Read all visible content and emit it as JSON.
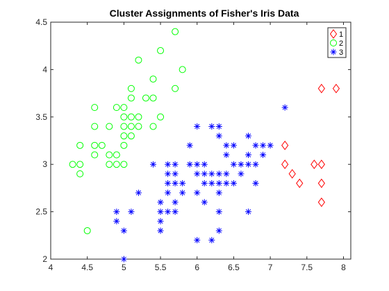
{
  "chart_data": {
    "type": "scatter",
    "title": "Cluster Assignments of Fisher's Iris Data",
    "xlabel": "",
    "ylabel": "",
    "xlim": [
      4,
      8.1
    ],
    "ylim": [
      2,
      4.5
    ],
    "xticks": [
      4,
      4.5,
      5,
      5.5,
      6,
      6.5,
      7,
      7.5,
      8
    ],
    "yticks": [
      2,
      2.5,
      3,
      3.5,
      4,
      4.5
    ],
    "xtick_labels": [
      "4",
      "4.5",
      "5",
      "5.5",
      "6",
      "6.5",
      "7",
      "7.5",
      "8"
    ],
    "ytick_labels": [
      "2",
      "2.5",
      "3",
      "3.5",
      "4",
      "4.5"
    ],
    "grid": false,
    "legend_position": "top-right",
    "series": [
      {
        "name": "1",
        "marker": "diamond",
        "color": "#ff0000",
        "points": [
          [
            7.7,
            3.8
          ],
          [
            7.9,
            3.8
          ],
          [
            7.2,
            3.2
          ],
          [
            7.2,
            3.0
          ],
          [
            7.3,
            2.9
          ],
          [
            7.4,
            2.8
          ],
          [
            7.6,
            3.0
          ],
          [
            7.7,
            3.0
          ],
          [
            7.7,
            2.8
          ],
          [
            7.7,
            2.6
          ]
        ]
      },
      {
        "name": "2",
        "marker": "circle",
        "color": "#00ff00",
        "points": [
          [
            5.7,
            4.4
          ],
          [
            5.5,
            4.2
          ],
          [
            5.2,
            4.1
          ],
          [
            5.8,
            4.0
          ],
          [
            5.4,
            3.9
          ],
          [
            5.1,
            3.8
          ],
          [
            5.7,
            3.8
          ],
          [
            5.1,
            3.7
          ],
          [
            5.3,
            3.7
          ],
          [
            5.4,
            3.7
          ],
          [
            4.6,
            3.6
          ],
          [
            4.9,
            3.6
          ],
          [
            5.0,
            3.6
          ],
          [
            5.0,
            3.5
          ],
          [
            5.1,
            3.5
          ],
          [
            5.2,
            3.5
          ],
          [
            5.5,
            3.5
          ],
          [
            4.6,
            3.4
          ],
          [
            4.8,
            3.4
          ],
          [
            5.0,
            3.4
          ],
          [
            5.1,
            3.4
          ],
          [
            5.2,
            3.4
          ],
          [
            5.4,
            3.4
          ],
          [
            5.0,
            3.3
          ],
          [
            4.4,
            3.2
          ],
          [
            4.6,
            3.2
          ],
          [
            4.7,
            3.2
          ],
          [
            5.0,
            3.2
          ],
          [
            4.6,
            3.1
          ],
          [
            4.8,
            3.1
          ],
          [
            4.9,
            3.1
          ],
          [
            5.1,
            3.3
          ],
          [
            4.3,
            3.0
          ],
          [
            4.4,
            3.0
          ],
          [
            4.8,
            3.0
          ],
          [
            4.9,
            3.0
          ],
          [
            5.0,
            3.0
          ],
          [
            4.4,
            2.9
          ],
          [
            4.5,
            2.3
          ]
        ]
      },
      {
        "name": "3",
        "marker": "asterisk",
        "color": "#0000ff",
        "points": [
          [
            7.2,
            3.6
          ],
          [
            6.0,
            3.4
          ],
          [
            6.2,
            3.4
          ],
          [
            6.3,
            3.4
          ],
          [
            6.3,
            3.3
          ],
          [
            6.7,
            3.3
          ],
          [
            5.9,
            3.2
          ],
          [
            6.4,
            3.2
          ],
          [
            6.5,
            3.2
          ],
          [
            6.8,
            3.2
          ],
          [
            6.9,
            3.2
          ],
          [
            7.0,
            3.2
          ],
          [
            6.7,
            3.1
          ],
          [
            6.9,
            3.1
          ],
          [
            6.4,
            3.1
          ],
          [
            5.4,
            3.0
          ],
          [
            5.6,
            3.0
          ],
          [
            5.7,
            3.0
          ],
          [
            5.9,
            3.0
          ],
          [
            6.0,
            3.0
          ],
          [
            6.1,
            3.0
          ],
          [
            6.5,
            3.0
          ],
          [
            6.6,
            3.0
          ],
          [
            6.7,
            3.0
          ],
          [
            6.8,
            3.0
          ],
          [
            5.6,
            2.9
          ],
          [
            5.7,
            2.9
          ],
          [
            6.0,
            2.9
          ],
          [
            6.1,
            2.9
          ],
          [
            6.2,
            2.9
          ],
          [
            6.3,
            2.9
          ],
          [
            6.4,
            2.9
          ],
          [
            6.6,
            2.9
          ],
          [
            5.6,
            2.8
          ],
          [
            5.7,
            2.8
          ],
          [
            5.8,
            2.8
          ],
          [
            6.1,
            2.8
          ],
          [
            6.2,
            2.8
          ],
          [
            6.3,
            2.8
          ],
          [
            6.4,
            2.8
          ],
          [
            6.5,
            2.8
          ],
          [
            6.8,
            2.8
          ],
          [
            5.2,
            2.7
          ],
          [
            5.6,
            2.7
          ],
          [
            5.8,
            2.7
          ],
          [
            6.0,
            2.7
          ],
          [
            6.3,
            2.7
          ],
          [
            5.5,
            2.6
          ],
          [
            5.7,
            2.6
          ],
          [
            6.1,
            2.6
          ],
          [
            4.9,
            2.5
          ],
          [
            5.1,
            2.5
          ],
          [
            5.5,
            2.5
          ],
          [
            5.6,
            2.5
          ],
          [
            5.7,
            2.5
          ],
          [
            6.3,
            2.5
          ],
          [
            6.7,
            2.5
          ],
          [
            4.9,
            2.4
          ],
          [
            5.5,
            2.4
          ],
          [
            5.0,
            2.3
          ],
          [
            5.5,
            2.3
          ],
          [
            6.3,
            2.3
          ],
          [
            6.0,
            2.2
          ],
          [
            6.2,
            2.2
          ],
          [
            5.0,
            2.0
          ]
        ]
      }
    ]
  }
}
